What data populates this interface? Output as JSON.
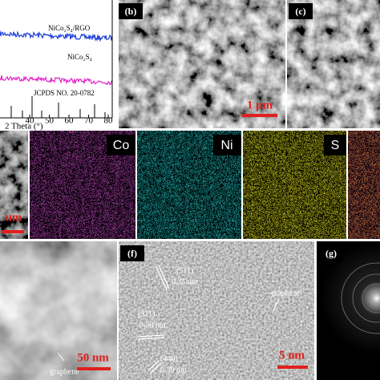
{
  "xrd": {
    "labels": [
      "NiCo₂S₄/RGO",
      "NiCo₂S₄",
      "JCPDS NO. 20-0782"
    ],
    "ticks": [
      "40",
      "50",
      "60",
      "70",
      "80"
    ],
    "axis_label": "2 Theta (°)"
  },
  "panels": {
    "b": "(b)",
    "c": "(c)",
    "f": "(f)",
    "g": "(g)"
  },
  "scale_bars": {
    "b": "1 μm",
    "d": "um",
    "e": "50 nm",
    "f": "5 nm"
  },
  "maps": [
    "Co",
    "Ni",
    "S"
  ],
  "tem": {
    "graphene": "graphene"
  },
  "hrtem": {
    "planes": [
      "(511)",
      "0.35 nm",
      "(311)",
      "0.28 nm",
      "(440)",
      "0.39 nm"
    ],
    "graphene": "graphene"
  }
}
